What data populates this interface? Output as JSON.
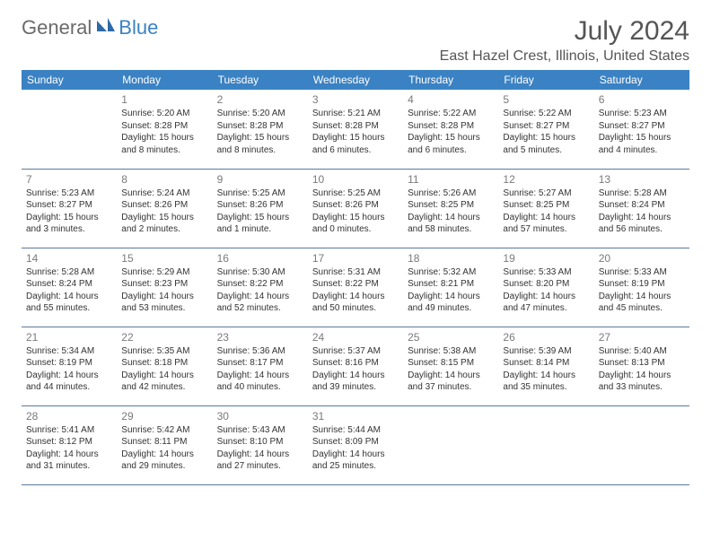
{
  "logo": {
    "general": "General",
    "blue": "Blue"
  },
  "title": "July 2024",
  "location": "East Hazel Crest, Illinois, United States",
  "colors": {
    "header_bg": "#3b82c4",
    "header_text": "#ffffff",
    "border": "#5a7a9a",
    "daynum": "#7a7a7a",
    "body_text": "#333333",
    "title_text": "#555555"
  },
  "weekdays": [
    "Sunday",
    "Monday",
    "Tuesday",
    "Wednesday",
    "Thursday",
    "Friday",
    "Saturday"
  ],
  "weeks": [
    [
      null,
      {
        "n": "1",
        "sr": "Sunrise: 5:20 AM",
        "ss": "Sunset: 8:28 PM",
        "dl": "Daylight: 15 hours and 8 minutes."
      },
      {
        "n": "2",
        "sr": "Sunrise: 5:20 AM",
        "ss": "Sunset: 8:28 PM",
        "dl": "Daylight: 15 hours and 8 minutes."
      },
      {
        "n": "3",
        "sr": "Sunrise: 5:21 AM",
        "ss": "Sunset: 8:28 PM",
        "dl": "Daylight: 15 hours and 6 minutes."
      },
      {
        "n": "4",
        "sr": "Sunrise: 5:22 AM",
        "ss": "Sunset: 8:28 PM",
        "dl": "Daylight: 15 hours and 6 minutes."
      },
      {
        "n": "5",
        "sr": "Sunrise: 5:22 AM",
        "ss": "Sunset: 8:27 PM",
        "dl": "Daylight: 15 hours and 5 minutes."
      },
      {
        "n": "6",
        "sr": "Sunrise: 5:23 AM",
        "ss": "Sunset: 8:27 PM",
        "dl": "Daylight: 15 hours and 4 minutes."
      }
    ],
    [
      {
        "n": "7",
        "sr": "Sunrise: 5:23 AM",
        "ss": "Sunset: 8:27 PM",
        "dl": "Daylight: 15 hours and 3 minutes."
      },
      {
        "n": "8",
        "sr": "Sunrise: 5:24 AM",
        "ss": "Sunset: 8:26 PM",
        "dl": "Daylight: 15 hours and 2 minutes."
      },
      {
        "n": "9",
        "sr": "Sunrise: 5:25 AM",
        "ss": "Sunset: 8:26 PM",
        "dl": "Daylight: 15 hours and 1 minute."
      },
      {
        "n": "10",
        "sr": "Sunrise: 5:25 AM",
        "ss": "Sunset: 8:26 PM",
        "dl": "Daylight: 15 hours and 0 minutes."
      },
      {
        "n": "11",
        "sr": "Sunrise: 5:26 AM",
        "ss": "Sunset: 8:25 PM",
        "dl": "Daylight: 14 hours and 58 minutes."
      },
      {
        "n": "12",
        "sr": "Sunrise: 5:27 AM",
        "ss": "Sunset: 8:25 PM",
        "dl": "Daylight: 14 hours and 57 minutes."
      },
      {
        "n": "13",
        "sr": "Sunrise: 5:28 AM",
        "ss": "Sunset: 8:24 PM",
        "dl": "Daylight: 14 hours and 56 minutes."
      }
    ],
    [
      {
        "n": "14",
        "sr": "Sunrise: 5:28 AM",
        "ss": "Sunset: 8:24 PM",
        "dl": "Daylight: 14 hours and 55 minutes."
      },
      {
        "n": "15",
        "sr": "Sunrise: 5:29 AM",
        "ss": "Sunset: 8:23 PM",
        "dl": "Daylight: 14 hours and 53 minutes."
      },
      {
        "n": "16",
        "sr": "Sunrise: 5:30 AM",
        "ss": "Sunset: 8:22 PM",
        "dl": "Daylight: 14 hours and 52 minutes."
      },
      {
        "n": "17",
        "sr": "Sunrise: 5:31 AM",
        "ss": "Sunset: 8:22 PM",
        "dl": "Daylight: 14 hours and 50 minutes."
      },
      {
        "n": "18",
        "sr": "Sunrise: 5:32 AM",
        "ss": "Sunset: 8:21 PM",
        "dl": "Daylight: 14 hours and 49 minutes."
      },
      {
        "n": "19",
        "sr": "Sunrise: 5:33 AM",
        "ss": "Sunset: 8:20 PM",
        "dl": "Daylight: 14 hours and 47 minutes."
      },
      {
        "n": "20",
        "sr": "Sunrise: 5:33 AM",
        "ss": "Sunset: 8:19 PM",
        "dl": "Daylight: 14 hours and 45 minutes."
      }
    ],
    [
      {
        "n": "21",
        "sr": "Sunrise: 5:34 AM",
        "ss": "Sunset: 8:19 PM",
        "dl": "Daylight: 14 hours and 44 minutes."
      },
      {
        "n": "22",
        "sr": "Sunrise: 5:35 AM",
        "ss": "Sunset: 8:18 PM",
        "dl": "Daylight: 14 hours and 42 minutes."
      },
      {
        "n": "23",
        "sr": "Sunrise: 5:36 AM",
        "ss": "Sunset: 8:17 PM",
        "dl": "Daylight: 14 hours and 40 minutes."
      },
      {
        "n": "24",
        "sr": "Sunrise: 5:37 AM",
        "ss": "Sunset: 8:16 PM",
        "dl": "Daylight: 14 hours and 39 minutes."
      },
      {
        "n": "25",
        "sr": "Sunrise: 5:38 AM",
        "ss": "Sunset: 8:15 PM",
        "dl": "Daylight: 14 hours and 37 minutes."
      },
      {
        "n": "26",
        "sr": "Sunrise: 5:39 AM",
        "ss": "Sunset: 8:14 PM",
        "dl": "Daylight: 14 hours and 35 minutes."
      },
      {
        "n": "27",
        "sr": "Sunrise: 5:40 AM",
        "ss": "Sunset: 8:13 PM",
        "dl": "Daylight: 14 hours and 33 minutes."
      }
    ],
    [
      {
        "n": "28",
        "sr": "Sunrise: 5:41 AM",
        "ss": "Sunset: 8:12 PM",
        "dl": "Daylight: 14 hours and 31 minutes."
      },
      {
        "n": "29",
        "sr": "Sunrise: 5:42 AM",
        "ss": "Sunset: 8:11 PM",
        "dl": "Daylight: 14 hours and 29 minutes."
      },
      {
        "n": "30",
        "sr": "Sunrise: 5:43 AM",
        "ss": "Sunset: 8:10 PM",
        "dl": "Daylight: 14 hours and 27 minutes."
      },
      {
        "n": "31",
        "sr": "Sunrise: 5:44 AM",
        "ss": "Sunset: 8:09 PM",
        "dl": "Daylight: 14 hours and 25 minutes."
      },
      null,
      null,
      null
    ]
  ]
}
